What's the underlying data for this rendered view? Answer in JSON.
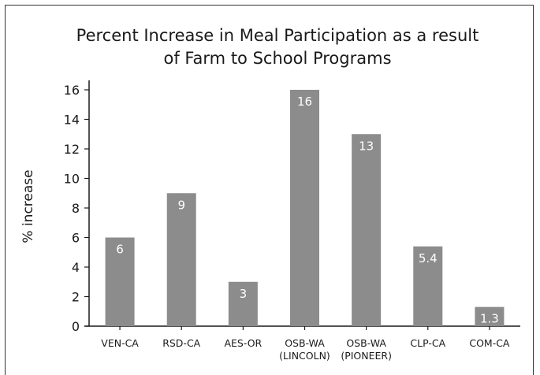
{
  "chart_data": {
    "type": "bar",
    "title": [
      "Percent Increase in Meal Participation as a result",
      "of Farm to School Programs"
    ],
    "ylabel": "% increase",
    "xlabel": "",
    "ylim": [
      0,
      16
    ],
    "yticks": [
      "0",
      "2",
      "4",
      "6",
      "8",
      "10",
      "12",
      "14",
      "16"
    ],
    "categories": [
      [
        "VEN-CA"
      ],
      [
        "RSD-CA"
      ],
      [
        "AES-OR"
      ],
      [
        "OSB-WA",
        "(LINCOLN)"
      ],
      [
        "OSB-WA",
        "(PIONEER)"
      ],
      [
        "CLP-CA"
      ],
      [
        "COM-CA"
      ]
    ],
    "values": [
      6,
      9,
      3,
      16,
      13,
      5.4,
      1.3
    ],
    "data_labels": [
      "6",
      "9",
      "3",
      "16",
      "13",
      "5.4",
      "1.3"
    ],
    "bar_color": "#8c8c8c",
    "grid": false,
    "legend": "none"
  }
}
